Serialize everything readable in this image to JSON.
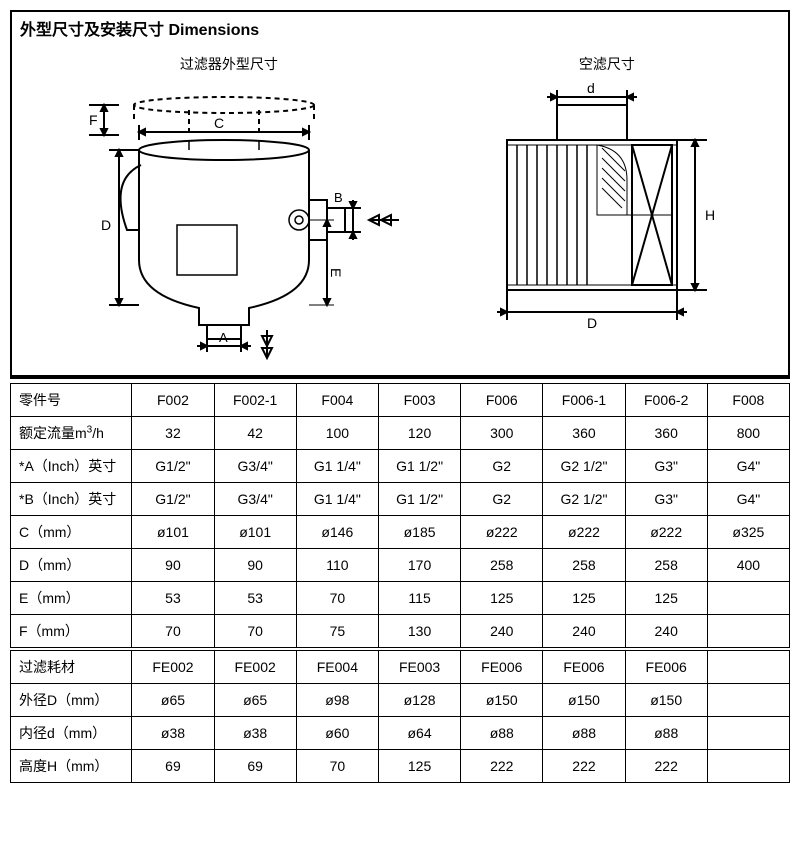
{
  "section_title": "外型尺寸及安装尺寸 Dimensions",
  "diagram_labels": {
    "left_caption": "过滤器外型尺寸",
    "right_caption": "空滤尺寸",
    "A": "A",
    "B": "B",
    "C": "C",
    "D": "D",
    "E": "E",
    "F": "F",
    "d": "d",
    "H": "H",
    "D2": "D"
  },
  "table1": {
    "headers": [
      "零件号",
      "F002",
      "F002-1",
      "F004",
      "F003",
      "F006",
      "F006-1",
      "F006-2",
      "F008"
    ],
    "rows": [
      {
        "label": "额定流量m³/h",
        "cells": [
          "32",
          "42",
          "100",
          "120",
          "300",
          "360",
          "360",
          "800"
        ]
      },
      {
        "label": "*A（Inch）英寸",
        "cells": [
          "G1/2\"",
          "G3/4\"",
          "G1 1/4\"",
          "G1 1/2\"",
          "G2",
          "G2 1/2\"",
          "G3\"",
          "G4\""
        ]
      },
      {
        "label": "*B（Inch）英寸",
        "cells": [
          "G1/2\"",
          "G3/4\"",
          "G1 1/4\"",
          "G1 1/2\"",
          "G2",
          "G2 1/2\"",
          "G3\"",
          "G4\""
        ]
      },
      {
        "label": "C（mm）",
        "cells": [
          "ø101",
          "ø101",
          "ø146",
          "ø185",
          "ø222",
          "ø222",
          "ø222",
          "ø325"
        ]
      },
      {
        "label": "D（mm）",
        "cells": [
          "90",
          "90",
          "110",
          "170",
          "258",
          "258",
          "258",
          "400"
        ]
      },
      {
        "label": "E（mm）",
        "cells": [
          "53",
          "53",
          "70",
          "115",
          "125",
          "125",
          "125",
          ""
        ]
      },
      {
        "label": "F（mm）",
        "cells": [
          "70",
          "70",
          "75",
          "130",
          "240",
          "240",
          "240",
          ""
        ]
      }
    ]
  },
  "table2": {
    "rows": [
      {
        "label": "过滤耗材",
        "cells": [
          "FE002",
          "FE002",
          "FE004",
          "FE003",
          "FE006",
          "FE006",
          "FE006",
          ""
        ]
      },
      {
        "label": "外径D（mm）",
        "cells": [
          "ø65",
          "ø65",
          "ø98",
          "ø128",
          "ø150",
          "ø150",
          "ø150",
          ""
        ]
      },
      {
        "label": "内径d（mm）",
        "cells": [
          "ø38",
          "ø38",
          "ø60",
          "ø64",
          "ø88",
          "ø88",
          "ø88",
          ""
        ]
      },
      {
        "label": "高度H（mm）",
        "cells": [
          "69",
          "69",
          "70",
          "125",
          "222",
          "222",
          "222",
          ""
        ]
      }
    ]
  },
  "col_widths": [
    "15.5%",
    "10.5%",
    "10.5%",
    "10.5%",
    "10.5%",
    "10.5%",
    "10.5%",
    "10.5%",
    "10.5%"
  ],
  "style": {
    "line_color": "#000000",
    "stroke_width": 2
  }
}
